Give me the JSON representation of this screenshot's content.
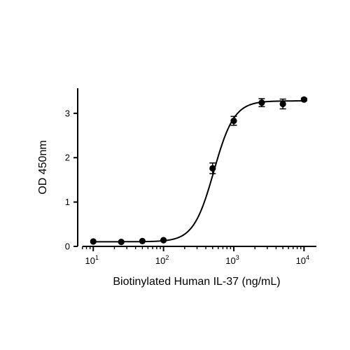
{
  "chart_data": {
    "type": "scatter",
    "xlabel": "Biotinylated Human IL-37 (ng/mL)",
    "ylabel": "OD 450nm",
    "x_scale": "log10",
    "xlim": [
      6,
      15000
    ],
    "ylim": [
      0,
      3.55
    ],
    "x_ticks": [
      {
        "value": 10,
        "base": "10",
        "exp": "1"
      },
      {
        "value": 100,
        "base": "10",
        "exp": "2"
      },
      {
        "value": 1000,
        "base": "10",
        "exp": "3"
      },
      {
        "value": 10000,
        "base": "10",
        "exp": "4"
      }
    ],
    "y_ticks": [
      {
        "value": 0,
        "label": "0"
      },
      {
        "value": 1,
        "label": "1"
      },
      {
        "value": 2,
        "label": "2"
      },
      {
        "value": 3,
        "label": "3"
      }
    ],
    "grid": false,
    "legend": "none",
    "points": [
      {
        "x": 10,
        "y": 0.11,
        "err": 0.01
      },
      {
        "x": 25,
        "y": 0.1,
        "err": 0.01
      },
      {
        "x": 50,
        "y": 0.12,
        "err": 0.01
      },
      {
        "x": 100,
        "y": 0.14,
        "err": 0.02
      },
      {
        "x": 500,
        "y": 1.76,
        "err": 0.12
      },
      {
        "x": 1000,
        "y": 2.83,
        "err": 0.1
      },
      {
        "x": 2500,
        "y": 3.24,
        "err": 0.09
      },
      {
        "x": 5000,
        "y": 3.21,
        "err": 0.11
      },
      {
        "x": 10000,
        "y": 3.31,
        "err": 0.03
      }
    ],
    "fit_curve": {
      "model": "4PL",
      "bottom": 0.105,
      "top": 3.28,
      "ec50": 520,
      "hill": 3.0
    },
    "colors": {
      "marker": "#000000",
      "line": "#000000",
      "axis": "#000000"
    }
  }
}
